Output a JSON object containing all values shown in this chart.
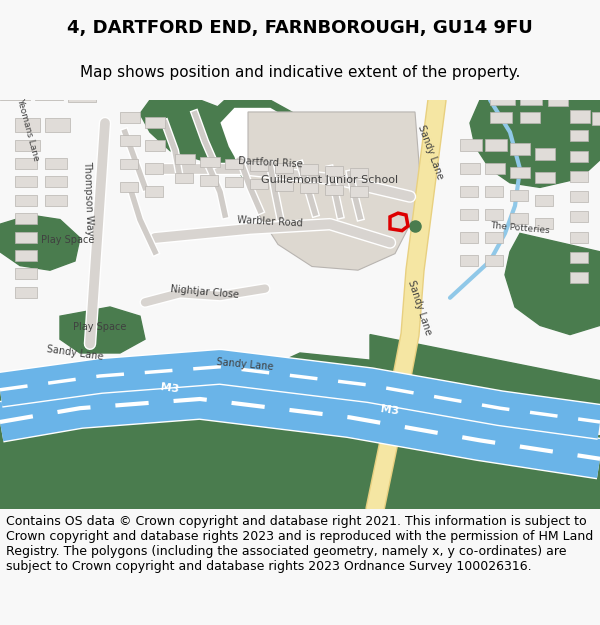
{
  "title_line1": "4, DARTFORD END, FARNBOROUGH, GU14 9FU",
  "title_line2": "Map shows position and indicative extent of the property.",
  "footer_text": "Contains OS data © Crown copyright and database right 2021. This information is subject to Crown copyright and database rights 2023 and is reproduced with the permission of HM Land Registry. The polygons (including the associated geometry, namely x, y co-ordinates) are subject to Crown copyright and database rights 2023 Ordnance Survey 100026316.",
  "bg_color": "#f8f8f8",
  "map_bg": "#f0ede8",
  "green_color": "#4a7c4e",
  "road_yellow": "#f5e6a3",
  "road_yellow_dark": "#e8d080",
  "motorway_blue": "#6ab4e8",
  "building_fill": "#e0dcd8",
  "building_outline": "#b8b4b0",
  "school_fill": "#ddd8d0",
  "text_dark": "#404040",
  "property_red": "#dd0000",
  "title_fontsize": 13,
  "subtitle_fontsize": 11,
  "footer_fontsize": 9,
  "label_fontsize": 7
}
